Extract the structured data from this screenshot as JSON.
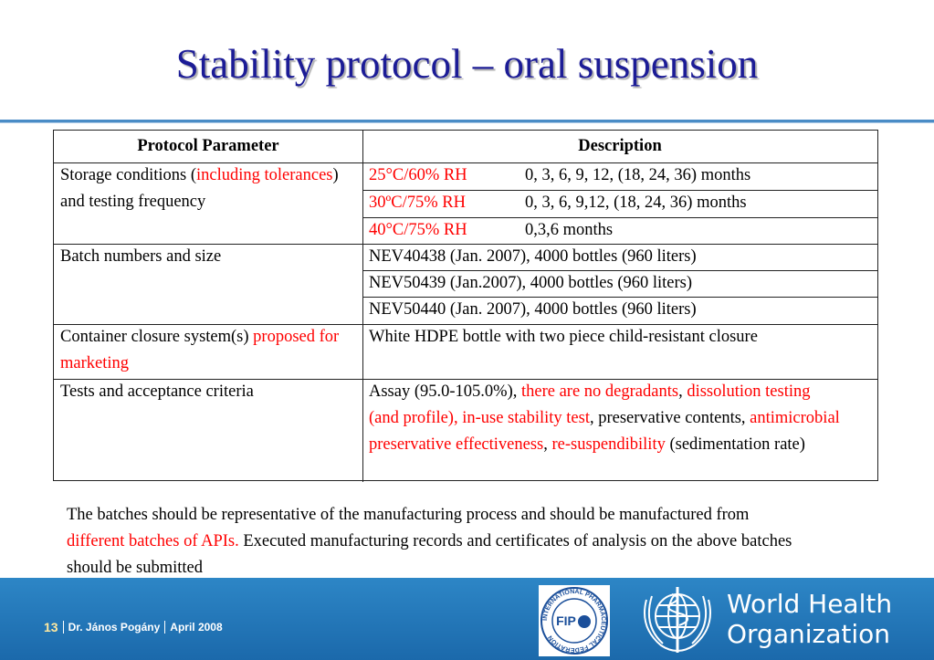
{
  "title": "Stability protocol – oral suspension",
  "table": {
    "header": [
      "Protocol Parameter",
      "Description"
    ],
    "rows": [
      {
        "parameter": [
          {
            "text": "Storage conditions ("
          },
          {
            "text": "including tolerances",
            "color": "#ff0000"
          },
          {
            "text": ") and testing frequency"
          }
        ],
        "description": [
          [
            {
              "text": "25°C/60% RH",
              "color": "#ff0000"
            },
            {
              "text": "0, 3, 6, 9, 12, (18, 24, 36) months"
            }
          ],
          [
            {
              "text": "30ºC/75% RH",
              "color": "#ff0000"
            },
            {
              "text": "0, 3, 6, 9,12, (18, 24, 36) months"
            }
          ],
          [
            {
              "text": "40°C/75% RH",
              "color": "#ff0000"
            },
            {
              "text": "0,3,6 months"
            }
          ]
        ]
      },
      {
        "parameter": [
          {
            "text": "Batch numbers and size"
          }
        ],
        "description": [
          [
            {
              "text": "NEV40438 (Jan. 2007), 4000 bottles (960 liters)"
            }
          ],
          [
            {
              "text": "NEV50439 (Jan.2007), 4000 bottles (960 liters)"
            }
          ],
          [
            {
              "text": "NEV50440 (Jan. 2007), 4000 bottles (960 liters)"
            }
          ]
        ]
      },
      {
        "parameter": [
          {
            "text": "Container closure system(s) "
          },
          {
            "text": "proposed for marketing",
            "color": "#ff0000"
          }
        ],
        "description": [
          [
            {
              "text": "White HDPE bottle with two piece child-resistant closure"
            }
          ]
        ]
      },
      {
        "parameter": [
          {
            "text": "Tests and acceptance criteria"
          }
        ],
        "description": [
          [
            {
              "text": "Assay (95.0-105.0%), "
            },
            {
              "text": "there are no degradants",
              "color": "#ff0000"
            },
            {
              "text": ", "
            },
            {
              "text": "dissolution  testing (and profile), in-use stability test",
              "color": "#ff0000"
            },
            {
              "text": ", preservative contents, "
            },
            {
              "text": "antimicrobial preservative effectiveness",
              "color": "#ff0000"
            },
            {
              "text": ", "
            },
            {
              "text": "re-suspendibility",
              "color": "#ff0000"
            },
            {
              "text": " (sedimentation rate)"
            }
          ]
        ]
      }
    ]
  },
  "note": [
    {
      "text": "The batches should be representative of the manufacturing process and should be manufactured from "
    },
    {
      "text": "different batches of APIs.",
      "color": "#ff0000"
    },
    {
      "text": " Executed manufacturing records and certificates of analysis on the above batches should be submitted"
    }
  ],
  "footer": {
    "page": "13",
    "author": "Dr. János Pogány",
    "date": "April 2008",
    "fip_logo": {
      "abbr": "FIP",
      "name": "INTERNATIONAL PHARMACEUTICAL FEDERATION"
    },
    "who_logo": [
      "World Health",
      "Organization"
    ]
  }
}
